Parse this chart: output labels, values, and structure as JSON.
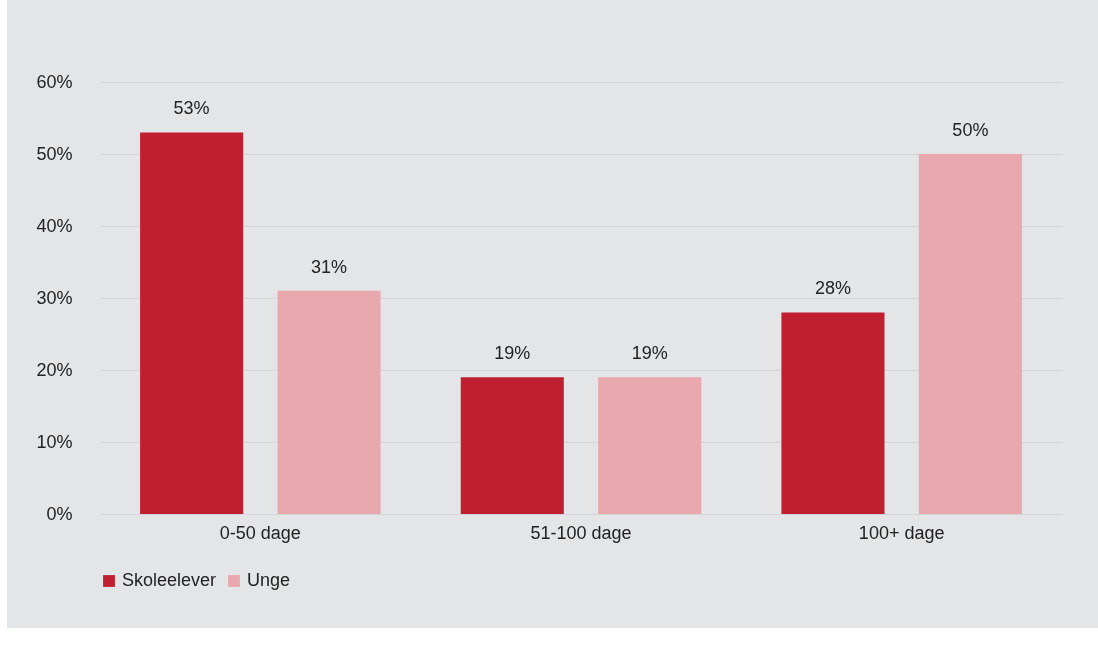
{
  "chart_data": {
    "type": "bar",
    "categories": [
      "0-50 dage",
      "51-100 dage",
      "100+ dage"
    ],
    "series": [
      {
        "name": "Skoleelever",
        "color": "#c01f30",
        "values": [
          53,
          19,
          28
        ],
        "value_labels": [
          "53%",
          "19%",
          "28%"
        ]
      },
      {
        "name": "Unge",
        "color": "#e8a8ad",
        "values": [
          31,
          19,
          50
        ],
        "value_labels": [
          "31%",
          "19%",
          "50%"
        ]
      }
    ],
    "ylim": [
      0,
      60
    ],
    "yticks": [
      {
        "value": 0,
        "label": "0%"
      },
      {
        "value": 10,
        "label": "10%"
      },
      {
        "value": 20,
        "label": "20%"
      },
      {
        "value": 30,
        "label": "30%"
      },
      {
        "value": 40,
        "label": "40%"
      },
      {
        "value": 50,
        "label": "50%"
      },
      {
        "value": 60,
        "label": "60%"
      }
    ],
    "grid": "y",
    "legend": "bottom"
  }
}
